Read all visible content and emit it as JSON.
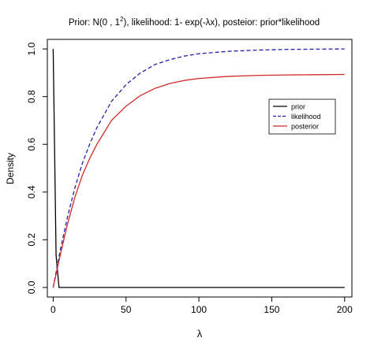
{
  "chart_data": {
    "type": "line",
    "title": "Prior: N(0 , 1²), likelihood: 1- exp(-λx), posteior: prior*likelihood",
    "title_parts": {
      "pre": "Prior: N(0 , 1",
      "sup": "2",
      "post": "), likelihood: 1- exp(-λx), posteior: prior*likelihood"
    },
    "xlabel": "λ",
    "ylabel": "Density",
    "xlim": [
      0,
      205
    ],
    "ylim": [
      0,
      1.0
    ],
    "x_ticks": [
      0,
      50,
      100,
      150,
      200
    ],
    "x_tick_labels": [
      "0",
      "50",
      "100",
      "150",
      "200"
    ],
    "y_ticks": [
      0.0,
      0.2,
      0.4,
      0.6,
      0.8,
      1.0
    ],
    "y_tick_labels": [
      "0.0",
      "0.2",
      "0.4",
      "0.6",
      "0.8",
      "1.0"
    ],
    "grid": false,
    "legend_position": "right",
    "series": [
      {
        "name": "prior",
        "color": "#000000",
        "dash": "solid",
        "x": [
          0,
          2,
          4,
          6,
          10,
          20,
          50,
          100,
          150,
          200
        ],
        "y": [
          1.0,
          0.135,
          0.0,
          0.0,
          0.0,
          0.0,
          0.0,
          0.0,
          0.0,
          0.0
        ]
      },
      {
        "name": "likelihood",
        "color": "#1f1fa8",
        "dash": "dashed",
        "x": [
          0,
          5,
          10,
          15,
          20,
          25,
          30,
          40,
          50,
          60,
          70,
          80,
          90,
          100,
          120,
          140,
          160,
          180,
          200
        ],
        "y": [
          0.0,
          0.16,
          0.3,
          0.42,
          0.52,
          0.6,
          0.67,
          0.78,
          0.85,
          0.9,
          0.935,
          0.955,
          0.97,
          0.98,
          0.99,
          0.995,
          0.998,
          0.999,
          1.0
        ]
      },
      {
        "name": "posterior",
        "color": "#cc2a2a",
        "dash": "solid",
        "x": [
          0,
          5,
          10,
          15,
          20,
          25,
          30,
          40,
          50,
          60,
          70,
          80,
          90,
          100,
          120,
          140,
          160,
          180,
          200
        ],
        "y": [
          0.0,
          0.14,
          0.27,
          0.38,
          0.47,
          0.54,
          0.6,
          0.7,
          0.76,
          0.805,
          0.835,
          0.855,
          0.868,
          0.876,
          0.885,
          0.889,
          0.891,
          0.892,
          0.893
        ]
      }
    ]
  }
}
